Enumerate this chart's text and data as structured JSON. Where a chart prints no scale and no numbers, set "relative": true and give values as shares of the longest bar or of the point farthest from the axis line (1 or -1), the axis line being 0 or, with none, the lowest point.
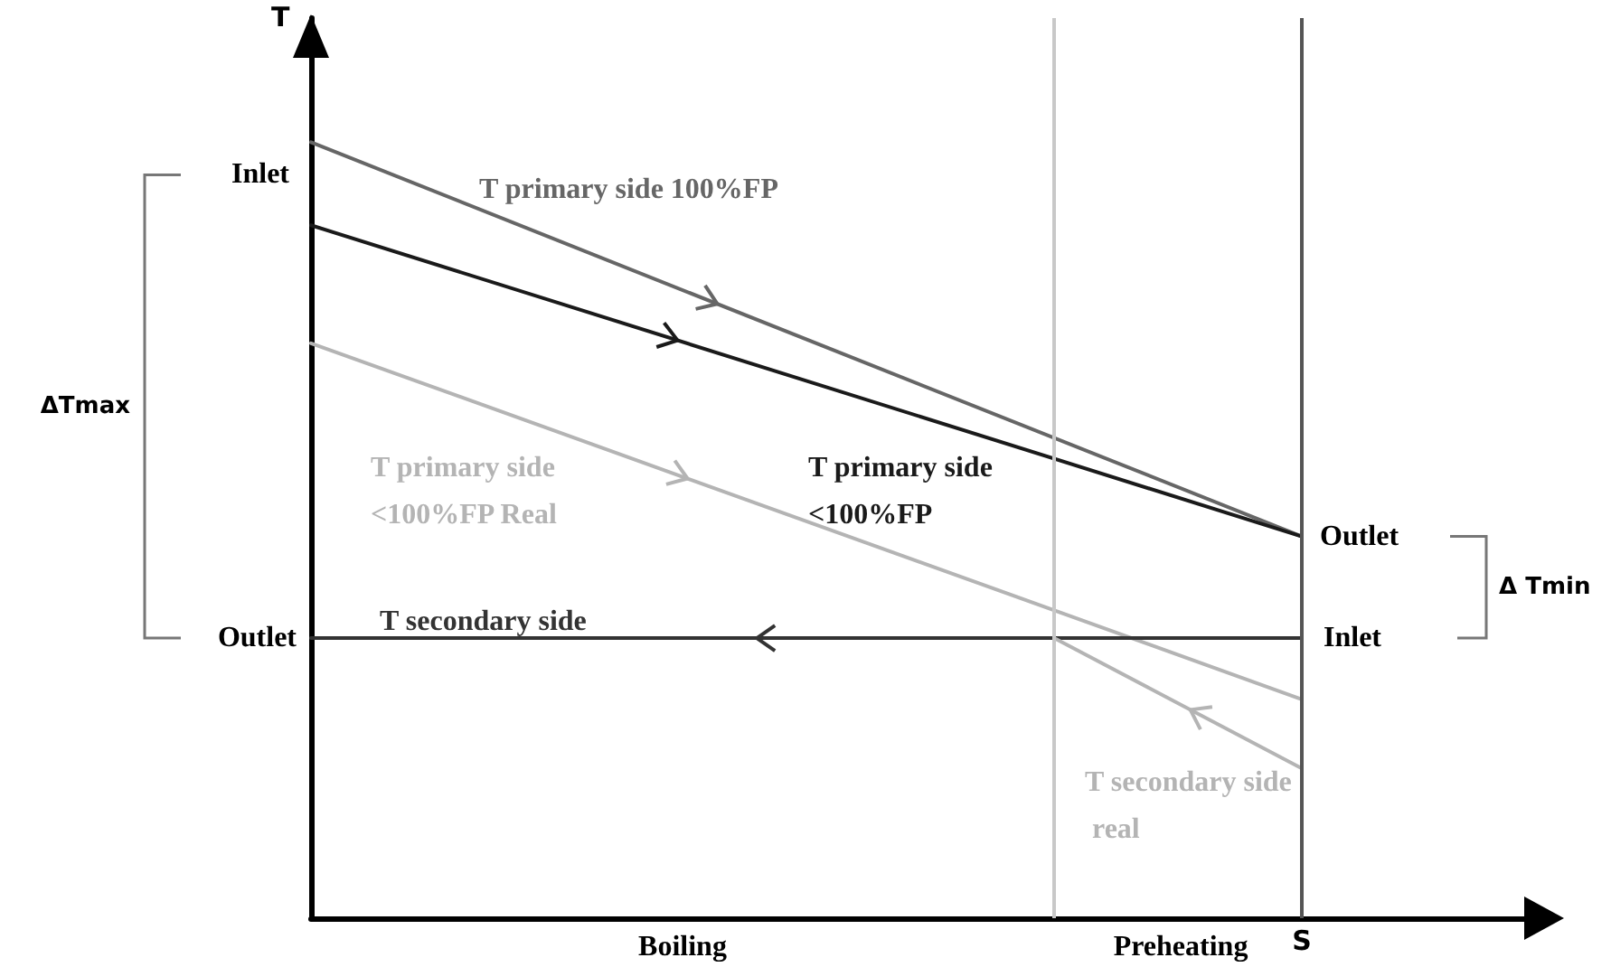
{
  "chart_data": {
    "type": "line",
    "relative": true,
    "xlabel": "S",
    "ylabel": "T",
    "categories": [
      null,
      null,
      null,
      null,
      null,
      null
    ],
    "series": [
      {
        "name": "T primary side 100%FP",
        "color": "#666666",
        "values": [
          1,
          null,
          null,
          null,
          0.492,
          null
        ]
      },
      {
        "name": "T primary side <100%FP",
        "color": "#1a1a1a",
        "values": [
          0.893,
          null,
          null,
          null,
          0.492,
          null
        ]
      },
      {
        "name": "T primary side <100%FP Real",
        "color": "#b4b4b4",
        "values": [
          0.741,
          null,
          null,
          null,
          0.282,
          null
        ]
      },
      {
        "name": "T secondary side",
        "color": "#333333",
        "values": [
          0.361,
          null,
          null,
          null,
          0.361,
          null
        ]
      },
      {
        "name": "T secondary side real",
        "color": "#b4b4b4",
        "values": [
          null,
          null,
          null,
          0.361,
          0.193,
          null
        ]
      }
    ],
    "annotations": [
      "Inlet",
      "Outlet",
      "Outlet",
      "Inlet",
      "ΔTmax",
      "Δ Tmin",
      "Boiling",
      "Preheating"
    ]
  }
}
